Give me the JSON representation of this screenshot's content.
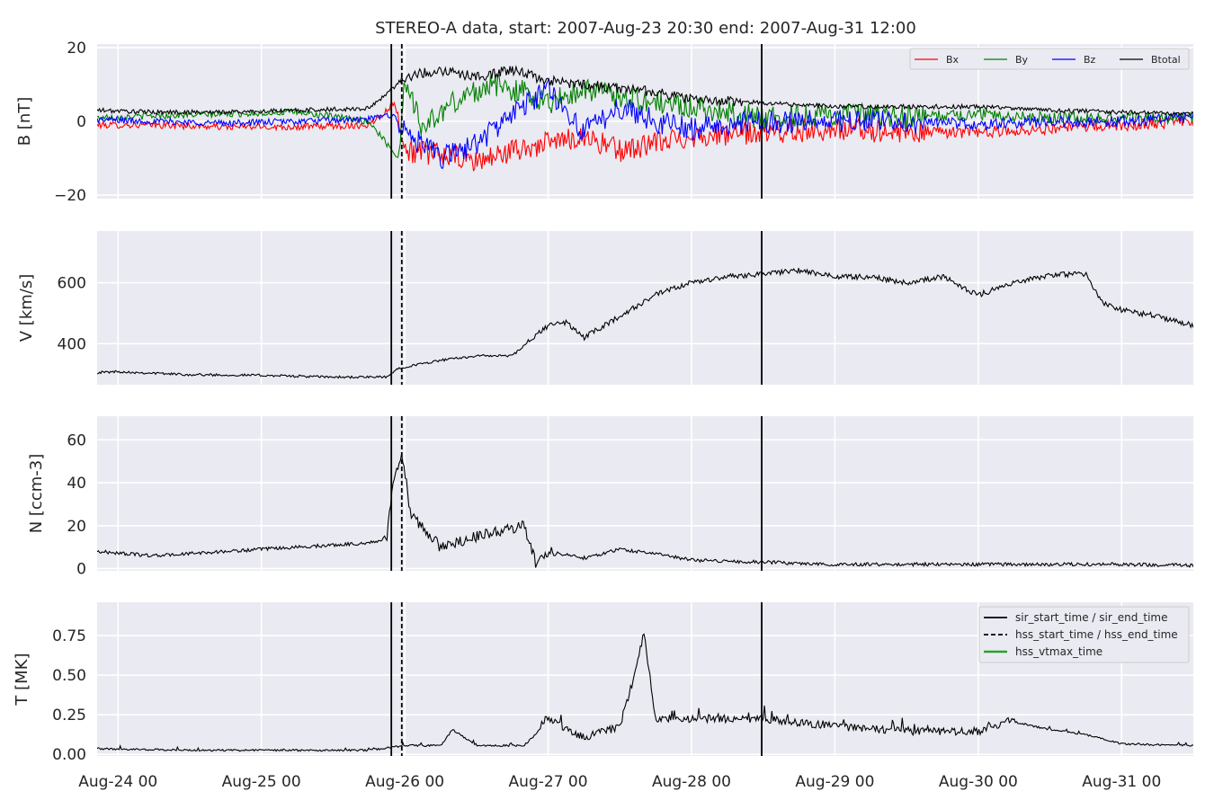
{
  "chart_data": {
    "type": "line",
    "title": "STEREO-A data, start: 2007-Aug-23 20:30  end: 2007-Aug-31 12:00",
    "x_range": [
      "2007-08-23 20:30",
      "2007-08-31 12:00"
    ],
    "x_ticks": [
      {
        "time": "2007-08-24 00:00",
        "label": "Aug-24 00"
      },
      {
        "time": "2007-08-25 00:00",
        "label": "Aug-25 00"
      },
      {
        "time": "2007-08-26 00:00",
        "label": "Aug-26 00"
      },
      {
        "time": "2007-08-27 00:00",
        "label": "Aug-27 00"
      },
      {
        "time": "2007-08-28 00:00",
        "label": "Aug-28 00"
      },
      {
        "time": "2007-08-29 00:00",
        "label": "Aug-29 00"
      },
      {
        "time": "2007-08-30 00:00",
        "label": "Aug-30 00"
      },
      {
        "time": "2007-08-31 00:00",
        "label": "Aug-31 00"
      }
    ],
    "grid": true,
    "event_lines": [
      {
        "label": "sir_start_time / sir_end_time",
        "style": "solid",
        "color": "#000000",
        "times": [
          "2007-08-25 21:45",
          "2007-08-28 11:45"
        ]
      },
      {
        "label": "hss_start_time / hss_end_time",
        "style": "dashed",
        "color": "#000000",
        "times": [
          "2007-08-25 23:30"
        ]
      },
      {
        "label": "hss_vtmax_time",
        "style": "solid",
        "color": "#2ca02c",
        "times": []
      }
    ],
    "panels": [
      {
        "id": "B",
        "ylabel": "B [nT]",
        "ylim": [
          -21,
          21
        ],
        "yticks": [
          -20,
          0,
          20
        ],
        "ytick_labels": [
          "−20",
          "0",
          "20"
        ],
        "legend": "top-right",
        "legend_columns": 4,
        "series": [
          {
            "name": "Bx",
            "color": "#ff0000",
            "points": [
              [
                "2007-08-23 20:30",
                -1
              ],
              [
                "2007-08-24 06:00",
                -1
              ],
              [
                "2007-08-24 18:00",
                -1.5
              ],
              [
                "2007-08-25 06:00",
                -1.5
              ],
              [
                "2007-08-25 18:00",
                -1
              ],
              [
                "2007-08-25 21:00",
                3
              ],
              [
                "2007-08-25 22:00",
                5
              ],
              [
                "2007-08-25 23:00",
                2
              ],
              [
                "2007-08-26 00:00",
                -8
              ],
              [
                "2007-08-26 06:00",
                -9
              ],
              [
                "2007-08-26 12:00",
                -11
              ],
              [
                "2007-08-26 18:00",
                -8
              ],
              [
                "2007-08-27 00:00",
                -6
              ],
              [
                "2007-08-27 06:00",
                -4
              ],
              [
                "2007-08-27 12:00",
                -8
              ],
              [
                "2007-08-27 18:00",
                -6
              ],
              [
                "2007-08-28 00:00",
                -4
              ],
              [
                "2007-08-28 12:00",
                -3
              ],
              [
                "2007-08-29 00:00",
                -2
              ],
              [
                "2007-08-29 12:00",
                -3
              ],
              [
                "2007-08-30 00:00",
                -3
              ],
              [
                "2007-08-30 12:00",
                -2
              ],
              [
                "2007-08-31 00:00",
                -1
              ],
              [
                "2007-08-31 12:00",
                0
              ]
            ]
          },
          {
            "name": "By",
            "color": "#008000",
            "points": [
              [
                "2007-08-23 20:30",
                1
              ],
              [
                "2007-08-24 06:00",
                1.5
              ],
              [
                "2007-08-24 18:00",
                2
              ],
              [
                "2007-08-25 06:00",
                2.5
              ],
              [
                "2007-08-25 18:00",
                0
              ],
              [
                "2007-08-25 23:00",
                -10
              ],
              [
                "2007-08-26 00:00",
                12
              ],
              [
                "2007-08-26 03:00",
                -2
              ],
              [
                "2007-08-26 08:00",
                5
              ],
              [
                "2007-08-26 14:00",
                10
              ],
              [
                "2007-08-26 20:00",
                8
              ],
              [
                "2007-08-27 00:00",
                5
              ],
              [
                "2007-08-27 06:00",
                9
              ],
              [
                "2007-08-27 12:00",
                7
              ],
              [
                "2007-08-27 18:00",
                5
              ],
              [
                "2007-08-28 00:00",
                4
              ],
              [
                "2007-08-28 12:00",
                1
              ],
              [
                "2007-08-29 00:00",
                2
              ],
              [
                "2007-08-29 12:00",
                1
              ],
              [
                "2007-08-30 00:00",
                2
              ],
              [
                "2007-08-30 12:00",
                1
              ],
              [
                "2007-08-31 00:00",
                1
              ],
              [
                "2007-08-31 12:00",
                1
              ]
            ]
          },
          {
            "name": "Bz",
            "color": "#0000ff",
            "points": [
              [
                "2007-08-23 20:30",
                0.5
              ],
              [
                "2007-08-24 06:00",
                0
              ],
              [
                "2007-08-24 18:00",
                -0.5
              ],
              [
                "2007-08-25 06:00",
                0
              ],
              [
                "2007-08-25 18:00",
                0.5
              ],
              [
                "2007-08-25 22:00",
                2
              ],
              [
                "2007-08-26 00:00",
                -3
              ],
              [
                "2007-08-26 06:00",
                -10
              ],
              [
                "2007-08-26 12:00",
                -6
              ],
              [
                "2007-08-26 18:00",
                2
              ],
              [
                "2007-08-27 00:00",
                9
              ],
              [
                "2007-08-27 06:00",
                -3
              ],
              [
                "2007-08-27 12:00",
                4
              ],
              [
                "2007-08-27 18:00",
                0
              ],
              [
                "2007-08-28 00:00",
                -2
              ],
              [
                "2007-08-28 12:00",
                0
              ],
              [
                "2007-08-29 00:00",
                0
              ],
              [
                "2007-08-29 12:00",
                0
              ],
              [
                "2007-08-30 00:00",
                -1
              ],
              [
                "2007-08-30 12:00",
                0
              ],
              [
                "2007-08-31 00:00",
                0
              ],
              [
                "2007-08-31 12:00",
                1
              ]
            ]
          },
          {
            "name": "Btotal",
            "color": "#000000",
            "points": [
              [
                "2007-08-23 20:30",
                3
              ],
              [
                "2007-08-24 06:00",
                2.5
              ],
              [
                "2007-08-24 18:00",
                2.5
              ],
              [
                "2007-08-25 06:00",
                3
              ],
              [
                "2007-08-25 18:00",
                3.5
              ],
              [
                "2007-08-25 22:00",
                9
              ],
              [
                "2007-08-26 00:00",
                12
              ],
              [
                "2007-08-26 06:00",
                14
              ],
              [
                "2007-08-26 12:00",
                12
              ],
              [
                "2007-08-26 18:00",
                14
              ],
              [
                "2007-08-27 00:00",
                11
              ],
              [
                "2007-08-27 06:00",
                10
              ],
              [
                "2007-08-27 12:00",
                9
              ],
              [
                "2007-08-27 18:00",
                8
              ],
              [
                "2007-08-28 00:00",
                6
              ],
              [
                "2007-08-28 12:00",
                5
              ],
              [
                "2007-08-29 00:00",
                4
              ],
              [
                "2007-08-29 12:00",
                4
              ],
              [
                "2007-08-30 00:00",
                4
              ],
              [
                "2007-08-30 12:00",
                3
              ],
              [
                "2007-08-31 00:00",
                2.5
              ],
              [
                "2007-08-31 12:00",
                2
              ]
            ]
          }
        ]
      },
      {
        "id": "V",
        "ylabel": "V [km/s]",
        "ylim": [
          265,
          770
        ],
        "yticks": [
          400,
          600
        ],
        "ytick_labels": [
          "400",
          "600"
        ],
        "series": [
          {
            "name": "",
            "color": "#000000",
            "points": [
              [
                "2007-08-23 20:30",
                305
              ],
              [
                "2007-08-24 00:00",
                308
              ],
              [
                "2007-08-24 12:00",
                298
              ],
              [
                "2007-08-25 00:00",
                296
              ],
              [
                "2007-08-25 12:00",
                290
              ],
              [
                "2007-08-25 21:00",
                290
              ],
              [
                "2007-08-25 23:00",
                320
              ],
              [
                "2007-08-26 06:00",
                345
              ],
              [
                "2007-08-26 12:00",
                360
              ],
              [
                "2007-08-26 18:00",
                360
              ],
              [
                "2007-08-27 00:00",
                460
              ],
              [
                "2007-08-27 03:00",
                470
              ],
              [
                "2007-08-27 06:00",
                420
              ],
              [
                "2007-08-27 12:00",
                490
              ],
              [
                "2007-08-27 18:00",
                560
              ],
              [
                "2007-08-28 00:00",
                600
              ],
              [
                "2007-08-28 06:00",
                620
              ],
              [
                "2007-08-28 12:00",
                630
              ],
              [
                "2007-08-28 18:00",
                640
              ],
              [
                "2007-08-29 00:00",
                620
              ],
              [
                "2007-08-29 06:00",
                620
              ],
              [
                "2007-08-29 12:00",
                600
              ],
              [
                "2007-08-29 18:00",
                620
              ],
              [
                "2007-08-30 00:00",
                560
              ],
              [
                "2007-08-30 06:00",
                600
              ],
              [
                "2007-08-30 12:00",
                625
              ],
              [
                "2007-08-30 18:00",
                630
              ],
              [
                "2007-08-30 21:00",
                530
              ],
              [
                "2007-08-31 00:00",
                510
              ],
              [
                "2007-08-31 06:00",
                490
              ],
              [
                "2007-08-31 12:00",
                460
              ]
            ]
          }
        ]
      },
      {
        "id": "N",
        "ylabel": "N [ccm-3]",
        "ylim": [
          -1,
          71
        ],
        "yticks": [
          0,
          20,
          40,
          60
        ],
        "ytick_labels": [
          "0",
          "20",
          "40",
          "60"
        ],
        "series": [
          {
            "name": "",
            "color": "#000000",
            "points": [
              [
                "2007-08-23 20:30",
                8
              ],
              [
                "2007-08-24 06:00",
                6
              ],
              [
                "2007-08-24 18:00",
                8
              ],
              [
                "2007-08-25 06:00",
                10
              ],
              [
                "2007-08-25 18:00",
                12
              ],
              [
                "2007-08-25 21:00",
                14
              ],
              [
                "2007-08-25 22:00",
                40
              ],
              [
                "2007-08-25 23:30",
                55
              ],
              [
                "2007-08-26 01:00",
                25
              ],
              [
                "2007-08-26 06:00",
                10
              ],
              [
                "2007-08-26 12:00",
                15
              ],
              [
                "2007-08-26 20:00",
                20
              ],
              [
                "2007-08-26 22:00",
                2
              ],
              [
                "2007-08-27 00:00",
                8
              ],
              [
                "2007-08-27 06:00",
                5
              ],
              [
                "2007-08-27 12:00",
                9
              ],
              [
                "2007-08-27 18:00",
                7
              ],
              [
                "2007-08-28 00:00",
                4
              ],
              [
                "2007-08-28 12:00",
                3
              ],
              [
                "2007-08-29 00:00",
                2
              ],
              [
                "2007-08-29 12:00",
                2
              ],
              [
                "2007-08-30 00:00",
                2
              ],
              [
                "2007-08-30 12:00",
                2
              ],
              [
                "2007-08-31 00:00",
                2
              ],
              [
                "2007-08-31 12:00",
                1.5
              ]
            ]
          }
        ]
      },
      {
        "id": "T",
        "ylabel": "T [MK]",
        "ylim": [
          -0.01,
          0.96
        ],
        "yticks": [
          0.0,
          0.25,
          0.5,
          0.75
        ],
        "ytick_labels": [
          "0.00",
          "0.25",
          "0.50",
          "0.75"
        ],
        "legend": "top-right",
        "series": [
          {
            "name": "",
            "color": "#000000",
            "points": [
              [
                "2007-08-23 20:30",
                0.03
              ],
              [
                "2007-08-24 12:00",
                0.02
              ],
              [
                "2007-08-25 00:00",
                0.02
              ],
              [
                "2007-08-25 18:00",
                0.02
              ],
              [
                "2007-08-26 00:00",
                0.05
              ],
              [
                "2007-08-26 06:00",
                0.05
              ],
              [
                "2007-08-26 08:00",
                0.15
              ],
              [
                "2007-08-26 12:00",
                0.05
              ],
              [
                "2007-08-26 20:00",
                0.05
              ],
              [
                "2007-08-27 00:00",
                0.2
              ],
              [
                "2007-08-27 06:00",
                0.08
              ],
              [
                "2007-08-27 12:00",
                0.15
              ],
              [
                "2007-08-27 15:00",
                0.55
              ],
              [
                "2007-08-27 16:00",
                0.75
              ],
              [
                "2007-08-27 18:00",
                0.2
              ],
              [
                "2007-08-28 00:00",
                0.2
              ],
              [
                "2007-08-28 12:00",
                0.2
              ],
              [
                "2007-08-29 00:00",
                0.15
              ],
              [
                "2007-08-29 12:00",
                0.12
              ],
              [
                "2007-08-30 00:00",
                0.12
              ],
              [
                "2007-08-30 06:00",
                0.2
              ],
              [
                "2007-08-30 12:00",
                0.15
              ],
              [
                "2007-08-30 18:00",
                0.12
              ],
              [
                "2007-08-31 00:00",
                0.06
              ],
              [
                "2007-08-31 12:00",
                0.05
              ]
            ]
          }
        ]
      }
    ]
  }
}
